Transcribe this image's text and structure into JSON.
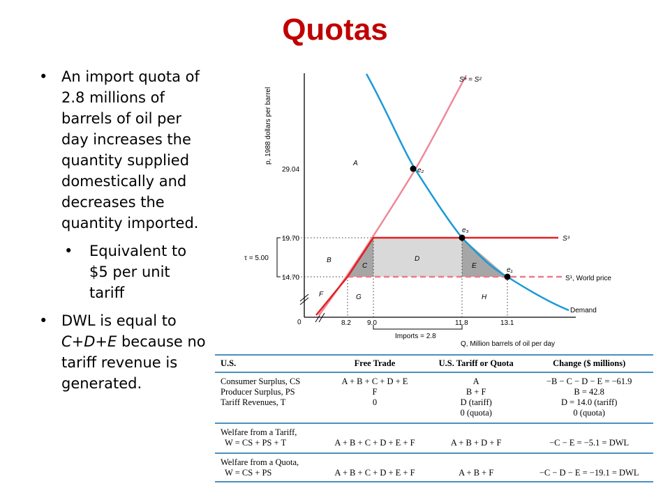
{
  "title": "Quotas",
  "bullets": {
    "b1": "An import quota of 2.8 millions of barrels of oil per day increases the quantity supplied domestically and decreases the quantity imported.",
    "b1_sub": "Equivalent to $5 per unit tariff",
    "b2_prefix": "DWL is equal to ",
    "b2_italic": "C+D+E",
    "b2_suffix": " because no tariff revenue is generated."
  },
  "graph": {
    "y_axis_label": "p, 1988 dollars per barrel",
    "x_axis_label": "Q, Million barrels of oil per day",
    "y_ticks": [
      "29.04",
      "19.70",
      "14.70",
      "0"
    ],
    "x_ticks": [
      "8.2",
      "9.0",
      "11.8",
      "13.1"
    ],
    "tau_label": "τ = 5.00",
    "imports_label": "Imports = 2.8",
    "supply_label": "Sᵃ = S²",
    "s3_label": "S³",
    "world_label": "S¹, World price",
    "demand_label": "Demand",
    "e1": "e₁",
    "e2": "e₂",
    "e3": "e₃",
    "areas": {
      "A": "A",
      "B": "B",
      "C": "C",
      "D": "D",
      "E": "E",
      "F": "F",
      "G": "G",
      "H": "H"
    },
    "colors": {
      "demand": "#1a9ad6",
      "supply": "#ee8899",
      "s3": "#e32020",
      "world": "#ee7a8a"
    }
  },
  "table": {
    "headers": [
      "U.S.",
      "Free Trade",
      "U.S. Tariff or Quota",
      "Change ($ millions)"
    ],
    "rows": [
      [
        "Consumer Surplus, CS",
        "A + B + C + D + E",
        "A",
        "−B − C − D − E = −61.9"
      ],
      [
        "Producer Surplus, PS",
        "F",
        "B + F",
        "B = 42.8"
      ],
      [
        "Tariff Revenues, T",
        "0",
        "D (tariff)",
        "D = 14.0 (tariff)"
      ],
      [
        "",
        "",
        "0 (quota)",
        "0 (quota)"
      ]
    ],
    "welfare_tariff": [
      "Welfare from a Tariff,",
      "W = CS + PS + T",
      "A + B + C + D + E + F",
      "A + B + D + F",
      "−C − E = −5.1 = DWL"
    ],
    "welfare_quota": [
      "Welfare from a Quota,",
      "W = CS + PS",
      "A + B + C + D + E + F",
      "A + B + F",
      "−C − D − E = −19.1 = DWL"
    ]
  }
}
